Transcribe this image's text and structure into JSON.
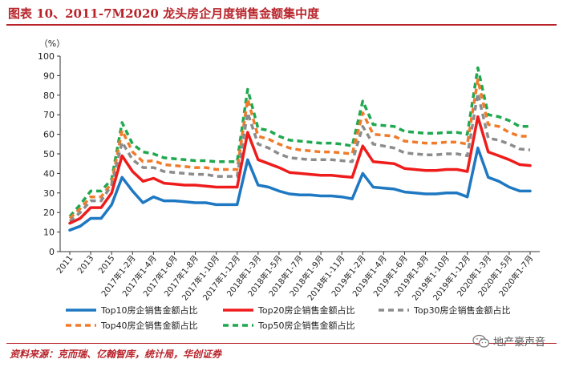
{
  "header": {
    "title": "图表 10、2011-7M2020 龙头房企月度销售金额集中度"
  },
  "footer": {
    "source": "资料来源：克而瑞、亿翰智库，统计局，华创证券",
    "watermark": "地产豪声音",
    "watermark_icon": "wechat-icon"
  },
  "colors": {
    "title": "#b8232a",
    "top10": "#1e78c2",
    "top20": "#ef1c1c",
    "top30": "#8c8c8c",
    "top40": "#f07b2a",
    "top50": "#1fa84f"
  },
  "chart_data": {
    "type": "line",
    "unit_label": "（%）",
    "ylim": [
      0,
      100
    ],
    "yticks": [
      0,
      10,
      20,
      30,
      40,
      50,
      60,
      70,
      80,
      90,
      100
    ],
    "grid": false,
    "legend_position": "bottom",
    "x_tick_labels": [
      "2011",
      "2013",
      "2015",
      "2017年1-2月",
      "2017年1-4月",
      "2017年1-6月",
      "2017年1-8月",
      "2017年1-10月",
      "2017年1-12月",
      "2018年1-3月",
      "2018年1-5月",
      "2018年1-7月",
      "2018年1-9月",
      "2018年1-11月",
      "2019年1-2月",
      "2019年1-4月",
      "2019年1-6月",
      "2019年1-8月",
      "2019年1-10月",
      "2019年1-12月",
      "2020年1-3月",
      "2020年1-5月",
      "2020年1-7月"
    ],
    "x": [
      "2011",
      "2012",
      "2013",
      "2014",
      "2015",
      "2016",
      "2017年1-2月",
      "2017年1-3月",
      "2017年1-4月",
      "2017年1-5月",
      "2017年1-6月",
      "2017年1-7月",
      "2017年1-8月",
      "2017年1-9月",
      "2017年1-10月",
      "2017年1-11月",
      "2017年1-12月",
      "2018年1-2月",
      "2018年1-3月",
      "2018年1-4月",
      "2018年1-5月",
      "2018年1-6月",
      "2018年1-7月",
      "2018年1-8月",
      "2018年1-9月",
      "2018年1-10月",
      "2018年1-11月",
      "2018年1-12月",
      "2019年1-2月",
      "2019年1-3月",
      "2019年1-4月",
      "2019年1-5月",
      "2019年1-6月",
      "2019年1-7月",
      "2019年1-8月",
      "2019年1-9月",
      "2019年1-10月",
      "2019年1-11月",
      "2019年1-12月",
      "2020年1-2月",
      "2020年1-3月",
      "2020年1-4月",
      "2020年1-5月",
      "2020年1-6月",
      "2020年1-7月"
    ],
    "series": [
      {
        "name": "Top10房企销售金额占比",
        "key": "top10",
        "dashed": false,
        "values": [
          11,
          13,
          17,
          17,
          24,
          38,
          31,
          25,
          28,
          26,
          26,
          25.5,
          25,
          25,
          24,
          24,
          24,
          47,
          34,
          33,
          31,
          29.5,
          29,
          29,
          28.5,
          28.5,
          28,
          27,
          40,
          33,
          32.5,
          32,
          30.5,
          30,
          29.5,
          29.5,
          30,
          30,
          28,
          53,
          38,
          36,
          33,
          31,
          31
        ]
      },
      {
        "name": "Top20房企销售金额占比",
        "key": "top20",
        "dashed": false,
        "values": [
          14.5,
          17,
          22.5,
          22.5,
          30,
          49,
          41,
          36,
          37.5,
          35,
          34.5,
          34,
          34,
          33.5,
          33,
          33,
          33,
          61,
          47,
          45,
          43,
          40.5,
          40,
          39.5,
          39,
          39,
          38.5,
          38,
          54,
          46,
          45.5,
          45,
          42.5,
          42,
          41.5,
          41.5,
          42,
          42,
          41,
          69,
          51,
          49,
          47,
          44.5,
          44
        ]
      },
      {
        "name": "Top30房企销售金额占比",
        "key": "top30",
        "dashed": true,
        "values": [
          15.5,
          20,
          26,
          26,
          34,
          56,
          47,
          43,
          43,
          41,
          40.5,
          40,
          39.5,
          39.5,
          38.5,
          38.5,
          38.5,
          71,
          55,
          53,
          50,
          48,
          47.5,
          47,
          47,
          47,
          46.5,
          46,
          64,
          55,
          54,
          53,
          50.5,
          50,
          49.5,
          49.5,
          50,
          50,
          49,
          81,
          58,
          57,
          55,
          52.5,
          52
        ]
      },
      {
        "name": "Top40房企销售金额占比",
        "key": "top40",
        "dashed": true,
        "values": [
          17,
          22,
          28,
          28,
          35,
          62,
          51,
          46,
          46.5,
          44.5,
          44,
          43.5,
          43,
          43,
          42,
          42,
          42,
          78,
          59,
          57.5,
          55,
          53,
          52,
          51.5,
          51,
          51,
          50.5,
          50,
          71,
          60,
          59.5,
          59,
          56.5,
          56,
          55.5,
          55.5,
          56,
          56,
          55,
          88,
          65,
          64,
          61,
          59,
          59
        ]
      },
      {
        "name": "Top50房企销售金额占比",
        "key": "top50",
        "dashed": true,
        "values": [
          18,
          24,
          31,
          31,
          37,
          66,
          55,
          51,
          50,
          48,
          47.5,
          47,
          46.5,
          46.5,
          46,
          46,
          46,
          83,
          63,
          62,
          59,
          57,
          56.5,
          56,
          55.5,
          55.5,
          55,
          54,
          77,
          65,
          64.5,
          64,
          61.5,
          61,
          60.5,
          60.5,
          61,
          61,
          60,
          94,
          70,
          69,
          67,
          64,
          64
        ]
      }
    ]
  }
}
